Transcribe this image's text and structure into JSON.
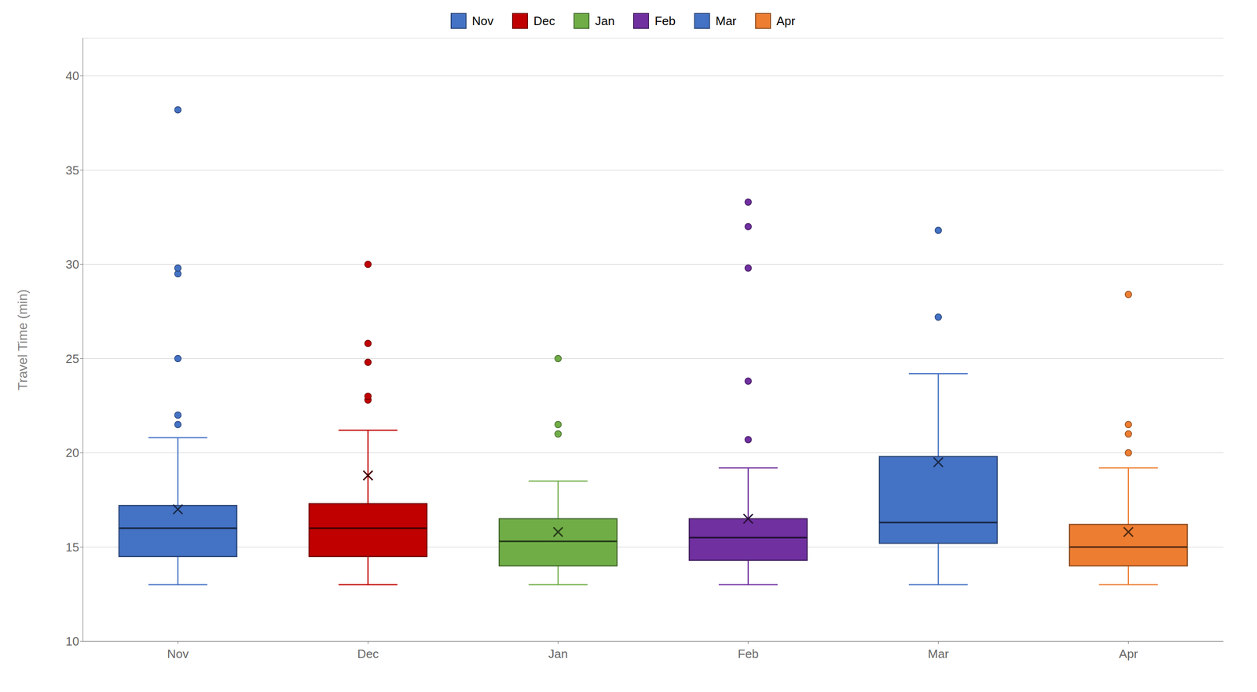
{
  "chart_data": {
    "type": "box",
    "y_label": "Travel Time (min)",
    "categories": [
      "Nov",
      "Dec",
      "Jan",
      "Feb",
      "Mar",
      "Apr"
    ],
    "colors": [
      "#4472C4",
      "#C00000",
      "#70AD47",
      "#7030A0",
      "#4472C4",
      "#ED7D31"
    ],
    "boxes": [
      {
        "q1": 14.5,
        "median": 16.0,
        "q3": 17.2,
        "mean": 17.0,
        "whislo": 13.0,
        "whishi": 20.8,
        "fliers": [
          21.5,
          22.0,
          25.0,
          29.5,
          29.8,
          38.2
        ]
      },
      {
        "q1": 14.5,
        "median": 16.0,
        "q3": 17.3,
        "mean": 18.8,
        "whislo": 13.0,
        "whishi": 21.2,
        "fliers": [
          22.8,
          23.0,
          24.8,
          25.8,
          30.0
        ]
      },
      {
        "q1": 14.0,
        "median": 15.3,
        "q3": 16.5,
        "mean": 15.8,
        "whislo": 13.0,
        "whishi": 18.5,
        "fliers": [
          21.0,
          21.5,
          25.0
        ]
      },
      {
        "q1": 14.3,
        "median": 15.5,
        "q3": 16.5,
        "mean": 16.5,
        "whislo": 13.0,
        "whishi": 19.2,
        "fliers": [
          20.7,
          23.8,
          29.8,
          32.0,
          33.3
        ]
      },
      {
        "q1": 15.2,
        "median": 16.3,
        "q3": 19.8,
        "mean": 19.5,
        "whislo": 13.0,
        "whishi": 24.2,
        "fliers": [
          27.2,
          31.8
        ]
      },
      {
        "q1": 14.0,
        "median": 15.0,
        "q3": 16.2,
        "mean": 15.8,
        "whislo": 13.0,
        "whishi": 19.2,
        "fliers": [
          20.0,
          21.0,
          21.5,
          28.4
        ]
      }
    ],
    "ylim": [
      10,
      42
    ],
    "yticks": [
      10,
      15,
      20,
      25,
      30,
      35,
      40
    ],
    "grid": true,
    "legend": "top"
  }
}
